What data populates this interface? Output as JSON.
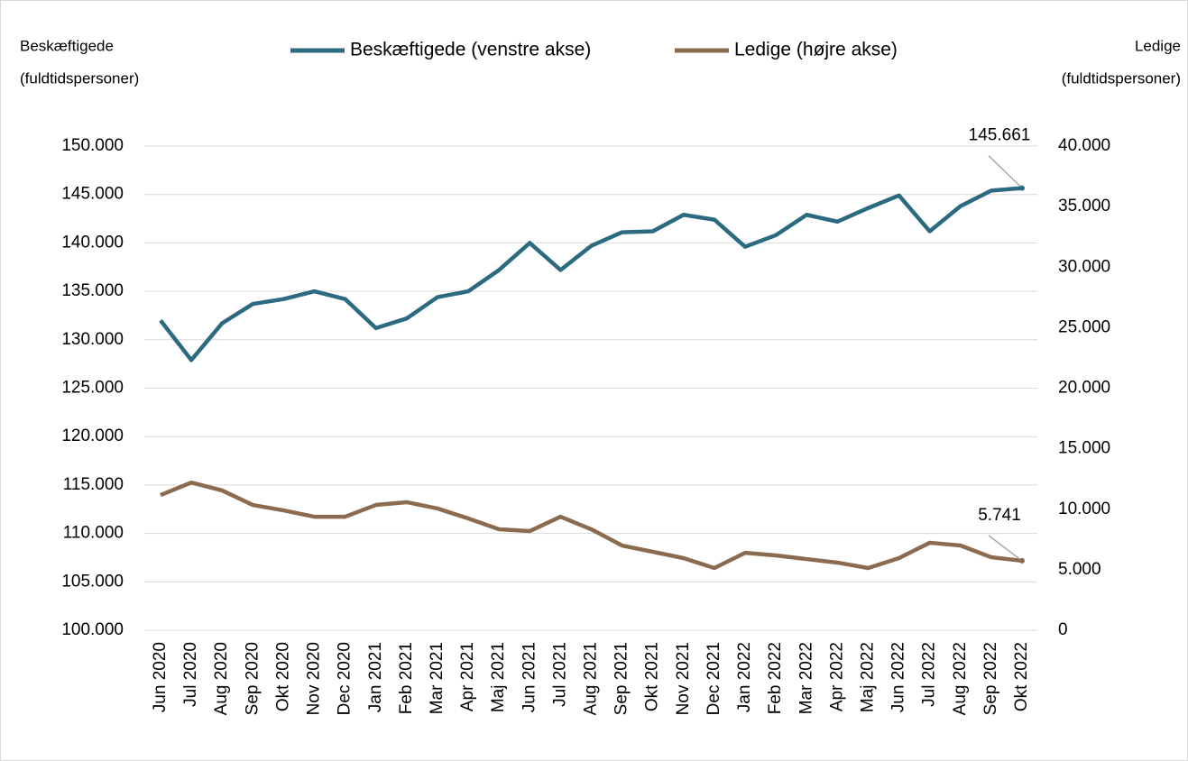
{
  "chart_data": {
    "type": "line",
    "y_label": [
      "Beskæftigede",
      "(fuldtidspersoner)"
    ],
    "y2_label": [
      "Ledige",
      "(fuldtidspersoner)"
    ],
    "categories": [
      "Jun 2020",
      "Jul 2020",
      "Aug 2020",
      "Sep 2020",
      "Okt 2020",
      "Nov 2020",
      "Dec 2020",
      "Jan 2021",
      "Feb 2021",
      "Mar 2021",
      "Apr 2021",
      "Maj 2021",
      "Jun 2021",
      "Jul 2021",
      "Aug 2021",
      "Sep 2021",
      "Okt 2021",
      "Nov 2021",
      "Dec 2021",
      "Jan 2022",
      "Feb 2022",
      "Mar 2022",
      "Apr 2022",
      "Maj 2022",
      "Jun 2022",
      "Jul 2022",
      "Aug 2022",
      "Sep 2022",
      "Okt 2022"
    ],
    "series": [
      {
        "name": "Beskæftigede (venstre akse)",
        "color": "#2b6a80",
        "axis": "y",
        "values": [
          132000,
          127900,
          131700,
          133700,
          134200,
          135000,
          134200,
          131200,
          132200,
          134400,
          135000,
          137200,
          140000,
          137200,
          139700,
          141100,
          141200,
          142900,
          142400,
          139600,
          140800,
          142900,
          142200,
          143600,
          144900,
          141200,
          143800,
          145400,
          145661
        ],
        "value_labels": [
          null,
          null,
          null,
          null,
          null,
          null,
          null,
          null,
          null,
          null,
          null,
          null,
          null,
          null,
          null,
          null,
          null,
          null,
          null,
          null,
          null,
          null,
          null,
          null,
          null,
          null,
          null,
          null,
          "145.661"
        ]
      },
      {
        "name": "Ledige (højre akse)",
        "color": "#8b6b4f",
        "axis": "y2",
        "values": [
          11170,
          12200,
          11550,
          10350,
          9900,
          9380,
          9380,
          10350,
          10580,
          10060,
          9240,
          8340,
          8190,
          9380,
          8340,
          7000,
          6480,
          5960,
          5140,
          6400,
          6180,
          5880,
          5590,
          5140,
          5960,
          7230,
          7000,
          6030,
          5741
        ],
        "value_labels": [
          null,
          null,
          null,
          null,
          null,
          null,
          null,
          null,
          null,
          null,
          null,
          null,
          null,
          null,
          null,
          null,
          null,
          null,
          null,
          null,
          null,
          null,
          null,
          null,
          null,
          null,
          null,
          null,
          "5.741"
        ]
      }
    ],
    "ylim": [
      100000,
      150000
    ],
    "yticks": [
      {
        "value": 100000,
        "label": "100.000"
      },
      {
        "value": 105000,
        "label": "105.000"
      },
      {
        "value": 110000,
        "label": "110.000"
      },
      {
        "value": 115000,
        "label": "115.000"
      },
      {
        "value": 120000,
        "label": "120.000"
      },
      {
        "value": 125000,
        "label": "125.000"
      },
      {
        "value": 130000,
        "label": "130.000"
      },
      {
        "value": 135000,
        "label": "135.000"
      },
      {
        "value": 140000,
        "label": "140.000"
      },
      {
        "value": 145000,
        "label": "145.000"
      },
      {
        "value": 150000,
        "label": "150.000"
      }
    ],
    "y2lim": [
      0,
      40000
    ],
    "y2ticks": [
      0,
      {
        "value": 5000,
        "label": "5.000"
      },
      {
        "value": 10000,
        "label": "10.000"
      },
      {
        "value": 15000,
        "label": "15.000"
      },
      {
        "value": 20000,
        "label": "20.000"
      },
      {
        "value": 25000,
        "label": "25.000"
      },
      {
        "value": 30000,
        "label": "30.000"
      },
      {
        "value": 35000,
        "label": "35.000"
      },
      {
        "value": 40000,
        "label": "40.000"
      }
    ],
    "grid": true,
    "legend": "top"
  }
}
